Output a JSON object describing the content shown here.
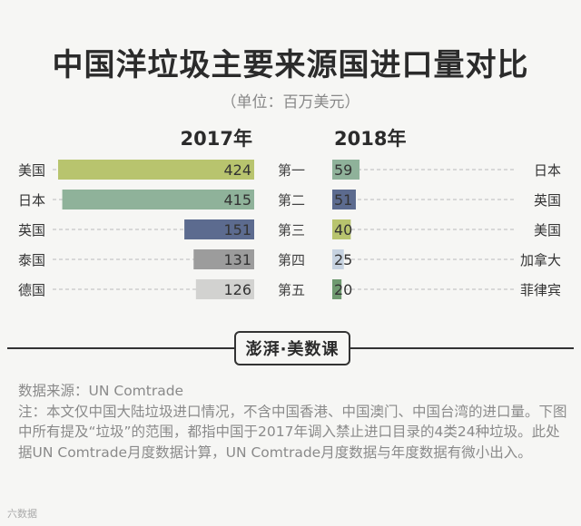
{
  "header": {
    "title": "中国洋垃圾主要来源国进口量对比",
    "unit": "（单位：百万美元）"
  },
  "chart_data": [
    {
      "type": "bar",
      "orientation": "horizontal",
      "title": "2017年",
      "categories": [
        "美国",
        "日本",
        "英国",
        "泰国",
        "德国"
      ],
      "values": [
        424,
        415,
        151,
        131,
        126
      ],
      "colors": [
        "#b8c46e",
        "#8fb29a",
        "#5c6b8f",
        "#9c9c9c",
        "#d2d2d0"
      ],
      "xlim": [
        0,
        424
      ]
    },
    {
      "type": "bar",
      "orientation": "horizontal",
      "title": "2018年",
      "categories": [
        "日本",
        "英国",
        "美国",
        "加拿大",
        "菲律宾"
      ],
      "values": [
        59,
        51,
        40,
        25,
        20
      ],
      "colors": [
        "#8fb29a",
        "#5c6b8f",
        "#b8c46e",
        "#c6d2e0",
        "#6f9a70"
      ],
      "xlim": [
        0,
        424
      ]
    }
  ],
  "ranks": [
    "第一",
    "第二",
    "第三",
    "第四",
    "第五"
  ],
  "brand": {
    "text": "澎湃·美数课"
  },
  "notes": {
    "source": "数据来源：UN Comtrade",
    "note": "注：本文仅中国大陆垃圾进口情况，不含中国香港、中国澳门、中国台湾的进口量。下图中所有提及“垃圾”的范围，都指中国于2017年调入禁止进口目录的4类24种垃圾。此处据UN Comtrade月度数据计算，UN Comtrade月度数据与年度数据有微小出入。"
  },
  "watermark": "六数据"
}
